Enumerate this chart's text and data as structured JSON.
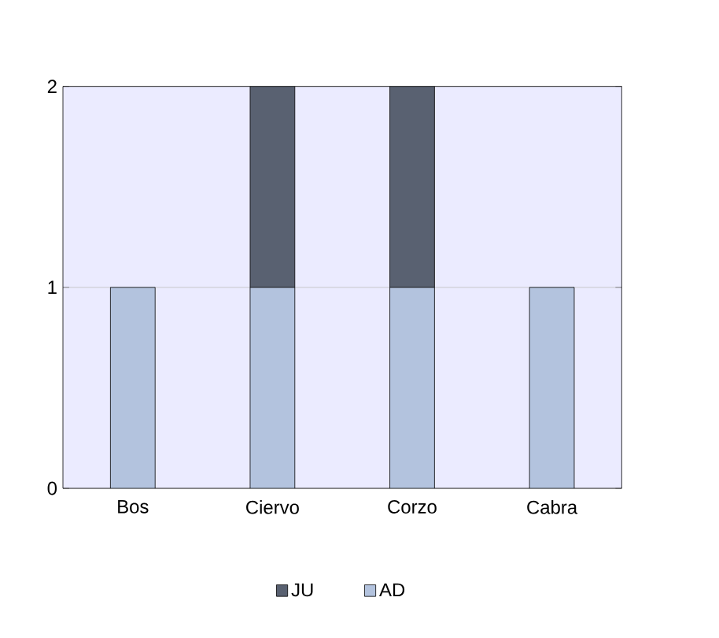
{
  "chart_data": {
    "type": "bar",
    "stacked": true,
    "categories": [
      "Bos",
      "Ciervo",
      "Corzo",
      "Cabra"
    ],
    "series": [
      {
        "name": "AD",
        "color": "#b3c3de",
        "values": [
          1,
          1,
          1,
          1
        ]
      },
      {
        "name": "JU",
        "color": "#596171",
        "values": [
          0,
          1,
          1,
          0
        ]
      }
    ],
    "ylim": [
      0,
      2
    ],
    "yticks": [
      0,
      1,
      2
    ],
    "grid": "y",
    "legend": "bottom"
  }
}
